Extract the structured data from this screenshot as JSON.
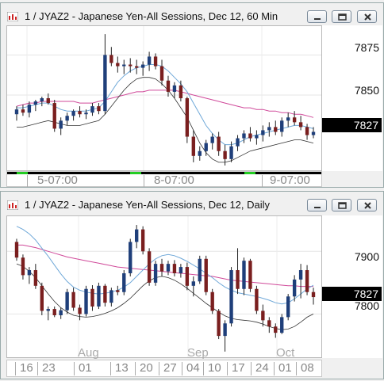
{
  "top_window": {
    "title": "1 / JYAZ2 - Japanese Yen-All Sessions, Dec 12, 60 Min",
    "price_labels": [
      "7875",
      "7850"
    ],
    "last_price": "7827",
    "time_labels": [
      "5-07:00",
      "8-07:00",
      "9-07:00"
    ]
  },
  "bottom_window": {
    "title": "1 / JYAZ2 - Japanese Yen-All Sessions, Dec 12, Daily",
    "price_labels": [
      "7900",
      "7800"
    ],
    "last_price": "7827",
    "month_labels": [
      "Aug",
      "Sep",
      "Oct"
    ],
    "day_labels": [
      "16",
      "23",
      "01",
      "13",
      "20",
      "27",
      "04",
      "10",
      "17",
      "24",
      "01",
      "08"
    ]
  },
  "colors": {
    "up_candle": "#1f3f7a",
    "down_candle": "#7a1f1f",
    "ma_long": "#d04a9a",
    "ma_short": "#6fa8d8",
    "ma_lower": "#333333",
    "session_bar": "#22cc22"
  },
  "icons": {
    "title_icon": "chart-icon",
    "minimize": "minimize-icon",
    "restore": "restore-icon",
    "close": "close-icon"
  },
  "chart_data": [
    {
      "type": "candlestick",
      "title": "1 / JYAZ2 - Japanese Yen-All Sessions, Dec 12, 60 Min",
      "ylim": [
        7803,
        7893
      ],
      "y_ticks": [
        7875,
        7850
      ],
      "last": 7827,
      "ohlc": [
        [
          7838,
          7843,
          7834,
          7841
        ],
        [
          7841,
          7844,
          7837,
          7839
        ],
        [
          7839,
          7846,
          7836,
          7844
        ],
        [
          7844,
          7847,
          7840,
          7846
        ],
        [
          7846,
          7849,
          7843,
          7848
        ],
        [
          7848,
          7851,
          7844,
          7845
        ],
        [
          7845,
          7847,
          7827,
          7829
        ],
        [
          7829,
          7836,
          7825,
          7834
        ],
        [
          7834,
          7839,
          7831,
          7837
        ],
        [
          7837,
          7841,
          7834,
          7840
        ],
        [
          7840,
          7843,
          7836,
          7838
        ],
        [
          7838,
          7841,
          7835,
          7839
        ],
        [
          7839,
          7845,
          7837,
          7843
        ],
        [
          7843,
          7845,
          7838,
          7840
        ],
        [
          7840,
          7888,
          7838,
          7875
        ],
        [
          7875,
          7880,
          7868,
          7870
        ],
        [
          7870,
          7874,
          7864,
          7868
        ],
        [
          7868,
          7872,
          7863,
          7869
        ],
        [
          7869,
          7873,
          7864,
          7868
        ],
        [
          7868,
          7872,
          7863,
          7867
        ],
        [
          7867,
          7871,
          7862,
          7869
        ],
        [
          7869,
          7877,
          7865,
          7874
        ],
        [
          7874,
          7876,
          7866,
          7868
        ],
        [
          7868,
          7872,
          7856,
          7859
        ],
        [
          7859,
          7862,
          7849,
          7852
        ],
        [
          7852,
          7858,
          7848,
          7856
        ],
        [
          7856,
          7859,
          7846,
          7848
        ],
        [
          7848,
          7849,
          7820,
          7824
        ],
        [
          7824,
          7828,
          7808,
          7812
        ],
        [
          7812,
          7818,
          7809,
          7815
        ],
        [
          7815,
          7822,
          7812,
          7820
        ],
        [
          7820,
          7826,
          7816,
          7824
        ],
        [
          7824,
          7827,
          7812,
          7815
        ],
        [
          7815,
          7819,
          7806,
          7810
        ],
        [
          7810,
          7821,
          7808,
          7818
        ],
        [
          7818,
          7825,
          7815,
          7823
        ],
        [
          7823,
          7828,
          7820,
          7826
        ],
        [
          7826,
          7830,
          7821,
          7823
        ],
        [
          7823,
          7828,
          7819,
          7825
        ],
        [
          7825,
          7831,
          7821,
          7828
        ],
        [
          7828,
          7833,
          7824,
          7830
        ],
        [
          7830,
          7834,
          7825,
          7827
        ],
        [
          7827,
          7836,
          7824,
          7834
        ],
        [
          7834,
          7839,
          7830,
          7836
        ],
        [
          7836,
          7840,
          7831,
          7833
        ],
        [
          7833,
          7837,
          7828,
          7830
        ],
        [
          7830,
          7832,
          7822,
          7825
        ],
        [
          7825,
          7830,
          7823,
          7827
        ]
      ],
      "ma_long": [
        7843,
        7844,
        7845,
        7845,
        7846,
        7846,
        7846,
        7846,
        7846,
        7846,
        7845,
        7845,
        7845,
        7846,
        7847,
        7848,
        7849,
        7850,
        7851,
        7852,
        7852,
        7853,
        7853,
        7853,
        7853,
        7853,
        7852,
        7851,
        7850,
        7849,
        7848,
        7847,
        7846,
        7845,
        7844,
        7843,
        7842,
        7842,
        7841,
        7841,
        7840,
        7840,
        7839,
        7839,
        7838,
        7838,
        7837,
        7836
      ],
      "ma_short": [
        7842,
        7842,
        7843,
        7844,
        7845,
        7845,
        7843,
        7841,
        7840,
        7840,
        7840,
        7840,
        7841,
        7842,
        7846,
        7852,
        7858,
        7862,
        7865,
        7867,
        7868,
        7869,
        7869,
        7868,
        7865,
        7861,
        7857,
        7852,
        7845,
        7838,
        7831,
        7826,
        7822,
        7819,
        7819,
        7820,
        7822,
        7824,
        7825,
        7826,
        7827,
        7828,
        7829,
        7830,
        7831,
        7831,
        7830,
        7829
      ],
      "ma_lower": [
        7830,
        7830,
        7831,
        7832,
        7833,
        7834,
        7833,
        7832,
        7831,
        7831,
        7831,
        7832,
        7833,
        7834,
        7838,
        7843,
        7848,
        7853,
        7857,
        7860,
        7861,
        7861,
        7860,
        7857,
        7853,
        7848,
        7842,
        7836,
        7828,
        7820,
        7814,
        7810,
        7808,
        7808,
        7809,
        7811,
        7813,
        7815,
        7816,
        7817,
        7818,
        7819,
        7820,
        7821,
        7822,
        7822,
        7821,
        7820
      ]
    },
    {
      "type": "candlestick",
      "title": "1 / JYAZ2 - Japanese Yen-All Sessions, Dec 12, Daily",
      "ylim": [
        7731,
        7956
      ],
      "y_ticks": [
        7900,
        7800
      ],
      "last": 7827,
      "ohlc": [
        [
          7915,
          7920,
          7885,
          7890
        ],
        [
          7890,
          7895,
          7855,
          7862
        ],
        [
          7862,
          7875,
          7848,
          7870
        ],
        [
          7870,
          7880,
          7840,
          7845
        ],
        [
          7845,
          7850,
          7798,
          7805
        ],
        [
          7805,
          7812,
          7790,
          7808
        ],
        [
          7808,
          7812,
          7795,
          7798
        ],
        [
          7798,
          7810,
          7792,
          7806
        ],
        [
          7806,
          7840,
          7800,
          7835
        ],
        [
          7835,
          7842,
          7805,
          7810
        ],
        [
          7810,
          7815,
          7790,
          7800
        ],
        [
          7800,
          7845,
          7796,
          7840
        ],
        [
          7840,
          7846,
          7805,
          7812
        ],
        [
          7812,
          7850,
          7808,
          7845
        ],
        [
          7845,
          7848,
          7812,
          7818
        ],
        [
          7818,
          7842,
          7812,
          7838
        ],
        [
          7838,
          7845,
          7830,
          7835
        ],
        [
          7835,
          7870,
          7830,
          7865
        ],
        [
          7865,
          7920,
          7860,
          7915
        ],
        [
          7915,
          7942,
          7905,
          7935
        ],
        [
          7935,
          7940,
          7895,
          7900
        ],
        [
          7900,
          7905,
          7845,
          7850
        ],
        [
          7850,
          7885,
          7845,
          7880
        ],
        [
          7880,
          7888,
          7860,
          7868
        ],
        [
          7868,
          7885,
          7862,
          7880
        ],
        [
          7880,
          7886,
          7860,
          7865
        ],
        [
          7865,
          7880,
          7858,
          7875
        ],
        [
          7875,
          7882,
          7838,
          7845
        ],
        [
          7845,
          7860,
          7828,
          7852
        ],
        [
          7852,
          7893,
          7848,
          7888
        ],
        [
          7888,
          7893,
          7830,
          7835
        ],
        [
          7835,
          7840,
          7800,
          7805
        ],
        [
          7805,
          7808,
          7760,
          7765
        ],
        [
          7765,
          7790,
          7740,
          7785
        ],
        [
          7785,
          7875,
          7780,
          7870
        ],
        [
          7870,
          7905,
          7832,
          7840
        ],
        [
          7840,
          7890,
          7830,
          7885
        ],
        [
          7885,
          7888,
          7835,
          7840
        ],
        [
          7840,
          7845,
          7800,
          7805
        ],
        [
          7805,
          7815,
          7780,
          7790
        ],
        [
          7790,
          7795,
          7770,
          7780
        ],
        [
          7780,
          7785,
          7762,
          7770
        ],
        [
          7770,
          7800,
          7768,
          7795
        ],
        [
          7795,
          7832,
          7790,
          7828
        ],
        [
          7828,
          7862,
          7820,
          7855
        ],
        [
          7855,
          7880,
          7825,
          7870
        ],
        [
          7870,
          7878,
          7830,
          7835
        ],
        [
          7835,
          7842,
          7815,
          7827
        ]
      ],
      "ma_long": [
        7910,
        7910,
        7908,
        7906,
        7903,
        7900,
        7897,
        7894,
        7891,
        7889,
        7887,
        7885,
        7883,
        7881,
        7879,
        7877,
        7875,
        7874,
        7873,
        7872,
        7871,
        7870,
        7869,
        7868,
        7867,
        7866,
        7865,
        7864,
        7863,
        7862,
        7861,
        7860,
        7858,
        7856,
        7854,
        7853,
        7852,
        7851,
        7850,
        7849,
        7848,
        7847,
        7846,
        7845,
        7845,
        7844,
        7844,
        7844
      ],
      "ma_short": [
        7940,
        7935,
        7928,
        7918,
        7905,
        7892,
        7878,
        7864,
        7852,
        7843,
        7838,
        7835,
        7833,
        7832,
        7833,
        7835,
        7838,
        7843,
        7850,
        7860,
        7870,
        7880,
        7888,
        7893,
        7895,
        7893,
        7889,
        7884,
        7878,
        7872,
        7865,
        7858,
        7850,
        7843,
        7838,
        7834,
        7832,
        7830,
        7828,
        7825,
        7822,
        7818,
        7816,
        7818,
        7824,
        7832,
        7840,
        7846
      ],
      "ma_lower": [
        7880,
        7876,
        7868,
        7858,
        7845,
        7832,
        7820,
        7810,
        7803,
        7798,
        7796,
        7795,
        7796,
        7798,
        7801,
        7805,
        7810,
        7817,
        7825,
        7835,
        7845,
        7853,
        7858,
        7860,
        7858,
        7854,
        7848,
        7841,
        7833,
        7825,
        7817,
        7810,
        7803,
        7797,
        7793,
        7791,
        7790,
        7789,
        7787,
        7784,
        7780,
        7777,
        7775,
        7776,
        7780,
        7787,
        7795,
        7800
      ]
    }
  ]
}
